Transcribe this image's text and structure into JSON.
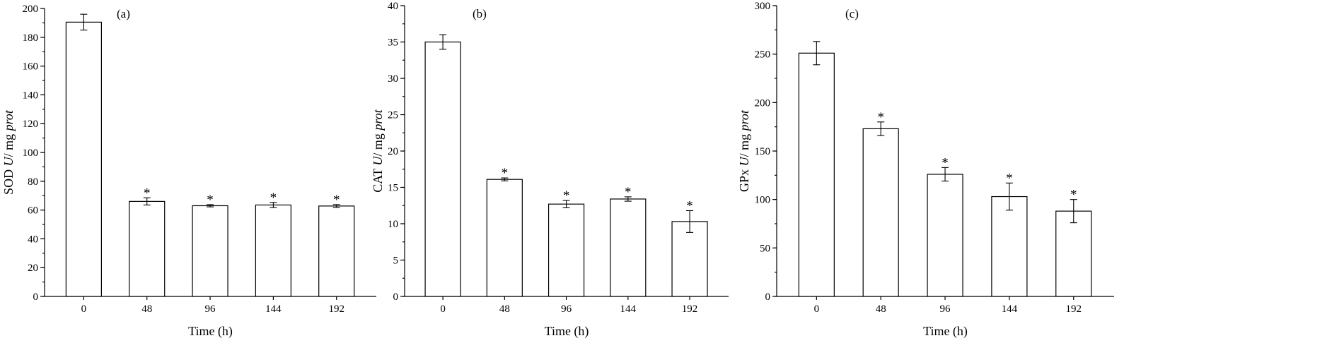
{
  "chart_data": [
    {
      "type": "bar",
      "panel_label": "(a)",
      "ylabel_prefix": "SOD ",
      "ylabel_unit_italic": "U",
      "ylabel_mid": "/ mg ",
      "ylabel_suffix_italic": "prot",
      "xlabel": "Time (h)",
      "categories": [
        "0",
        "48",
        "96",
        "144",
        "192"
      ],
      "values": [
        190.5,
        66,
        63,
        63.5,
        62.8
      ],
      "errors": [
        5.5,
        2.5,
        0.8,
        1.8,
        1.0
      ],
      "significance": [
        "",
        "*",
        "*",
        "*",
        "*"
      ],
      "ylim": [
        0,
        200
      ],
      "yticks": [
        "0",
        "20",
        "40",
        "60",
        "80",
        "100",
        "120",
        "140",
        "160",
        "180",
        "200"
      ],
      "ytick_values": [
        0,
        20,
        40,
        60,
        80,
        100,
        120,
        140,
        160,
        180,
        200
      ],
      "minor_step": 10
    },
    {
      "type": "bar",
      "panel_label": "(b)",
      "ylabel_prefix": "CAT ",
      "ylabel_unit_italic": "U",
      "ylabel_mid": "/ mg ",
      "ylabel_suffix_italic": "prot",
      "xlabel": "Time (h)",
      "categories": [
        "0",
        "48",
        "96",
        "144",
        "192"
      ],
      "values": [
        35,
        16.1,
        12.7,
        13.4,
        10.3
      ],
      "errors": [
        1.0,
        0.2,
        0.5,
        0.3,
        1.5
      ],
      "significance": [
        "",
        "*",
        "*",
        "*",
        "*"
      ],
      "ylim": [
        0,
        40
      ],
      "yticks": [
        "0",
        "5",
        "10",
        "15",
        "20",
        "25",
        "30",
        "35",
        "40"
      ],
      "ytick_values": [
        0,
        5,
        10,
        15,
        20,
        25,
        30,
        35,
        40
      ],
      "minor_step": 2.5
    },
    {
      "type": "bar",
      "panel_label": "(c)",
      "ylabel_prefix": "GPx ",
      "ylabel_unit_italic": "U",
      "ylabel_mid": "/ mg ",
      "ylabel_suffix_italic": "prot",
      "xlabel": "Time (h)",
      "categories": [
        "0",
        "48",
        "96",
        "144",
        "192"
      ],
      "values": [
        251,
        173,
        126,
        103,
        88
      ],
      "errors": [
        12,
        7,
        7,
        14,
        12
      ],
      "significance": [
        "",
        "*",
        "*",
        "*",
        "*"
      ],
      "ylim": [
        0,
        300
      ],
      "yticks": [
        "0",
        "50",
        "100",
        "150",
        "200",
        "250",
        "300"
      ],
      "ytick_values": [
        0,
        50,
        100,
        150,
        200,
        250,
        300
      ],
      "minor_step": 25
    }
  ]
}
